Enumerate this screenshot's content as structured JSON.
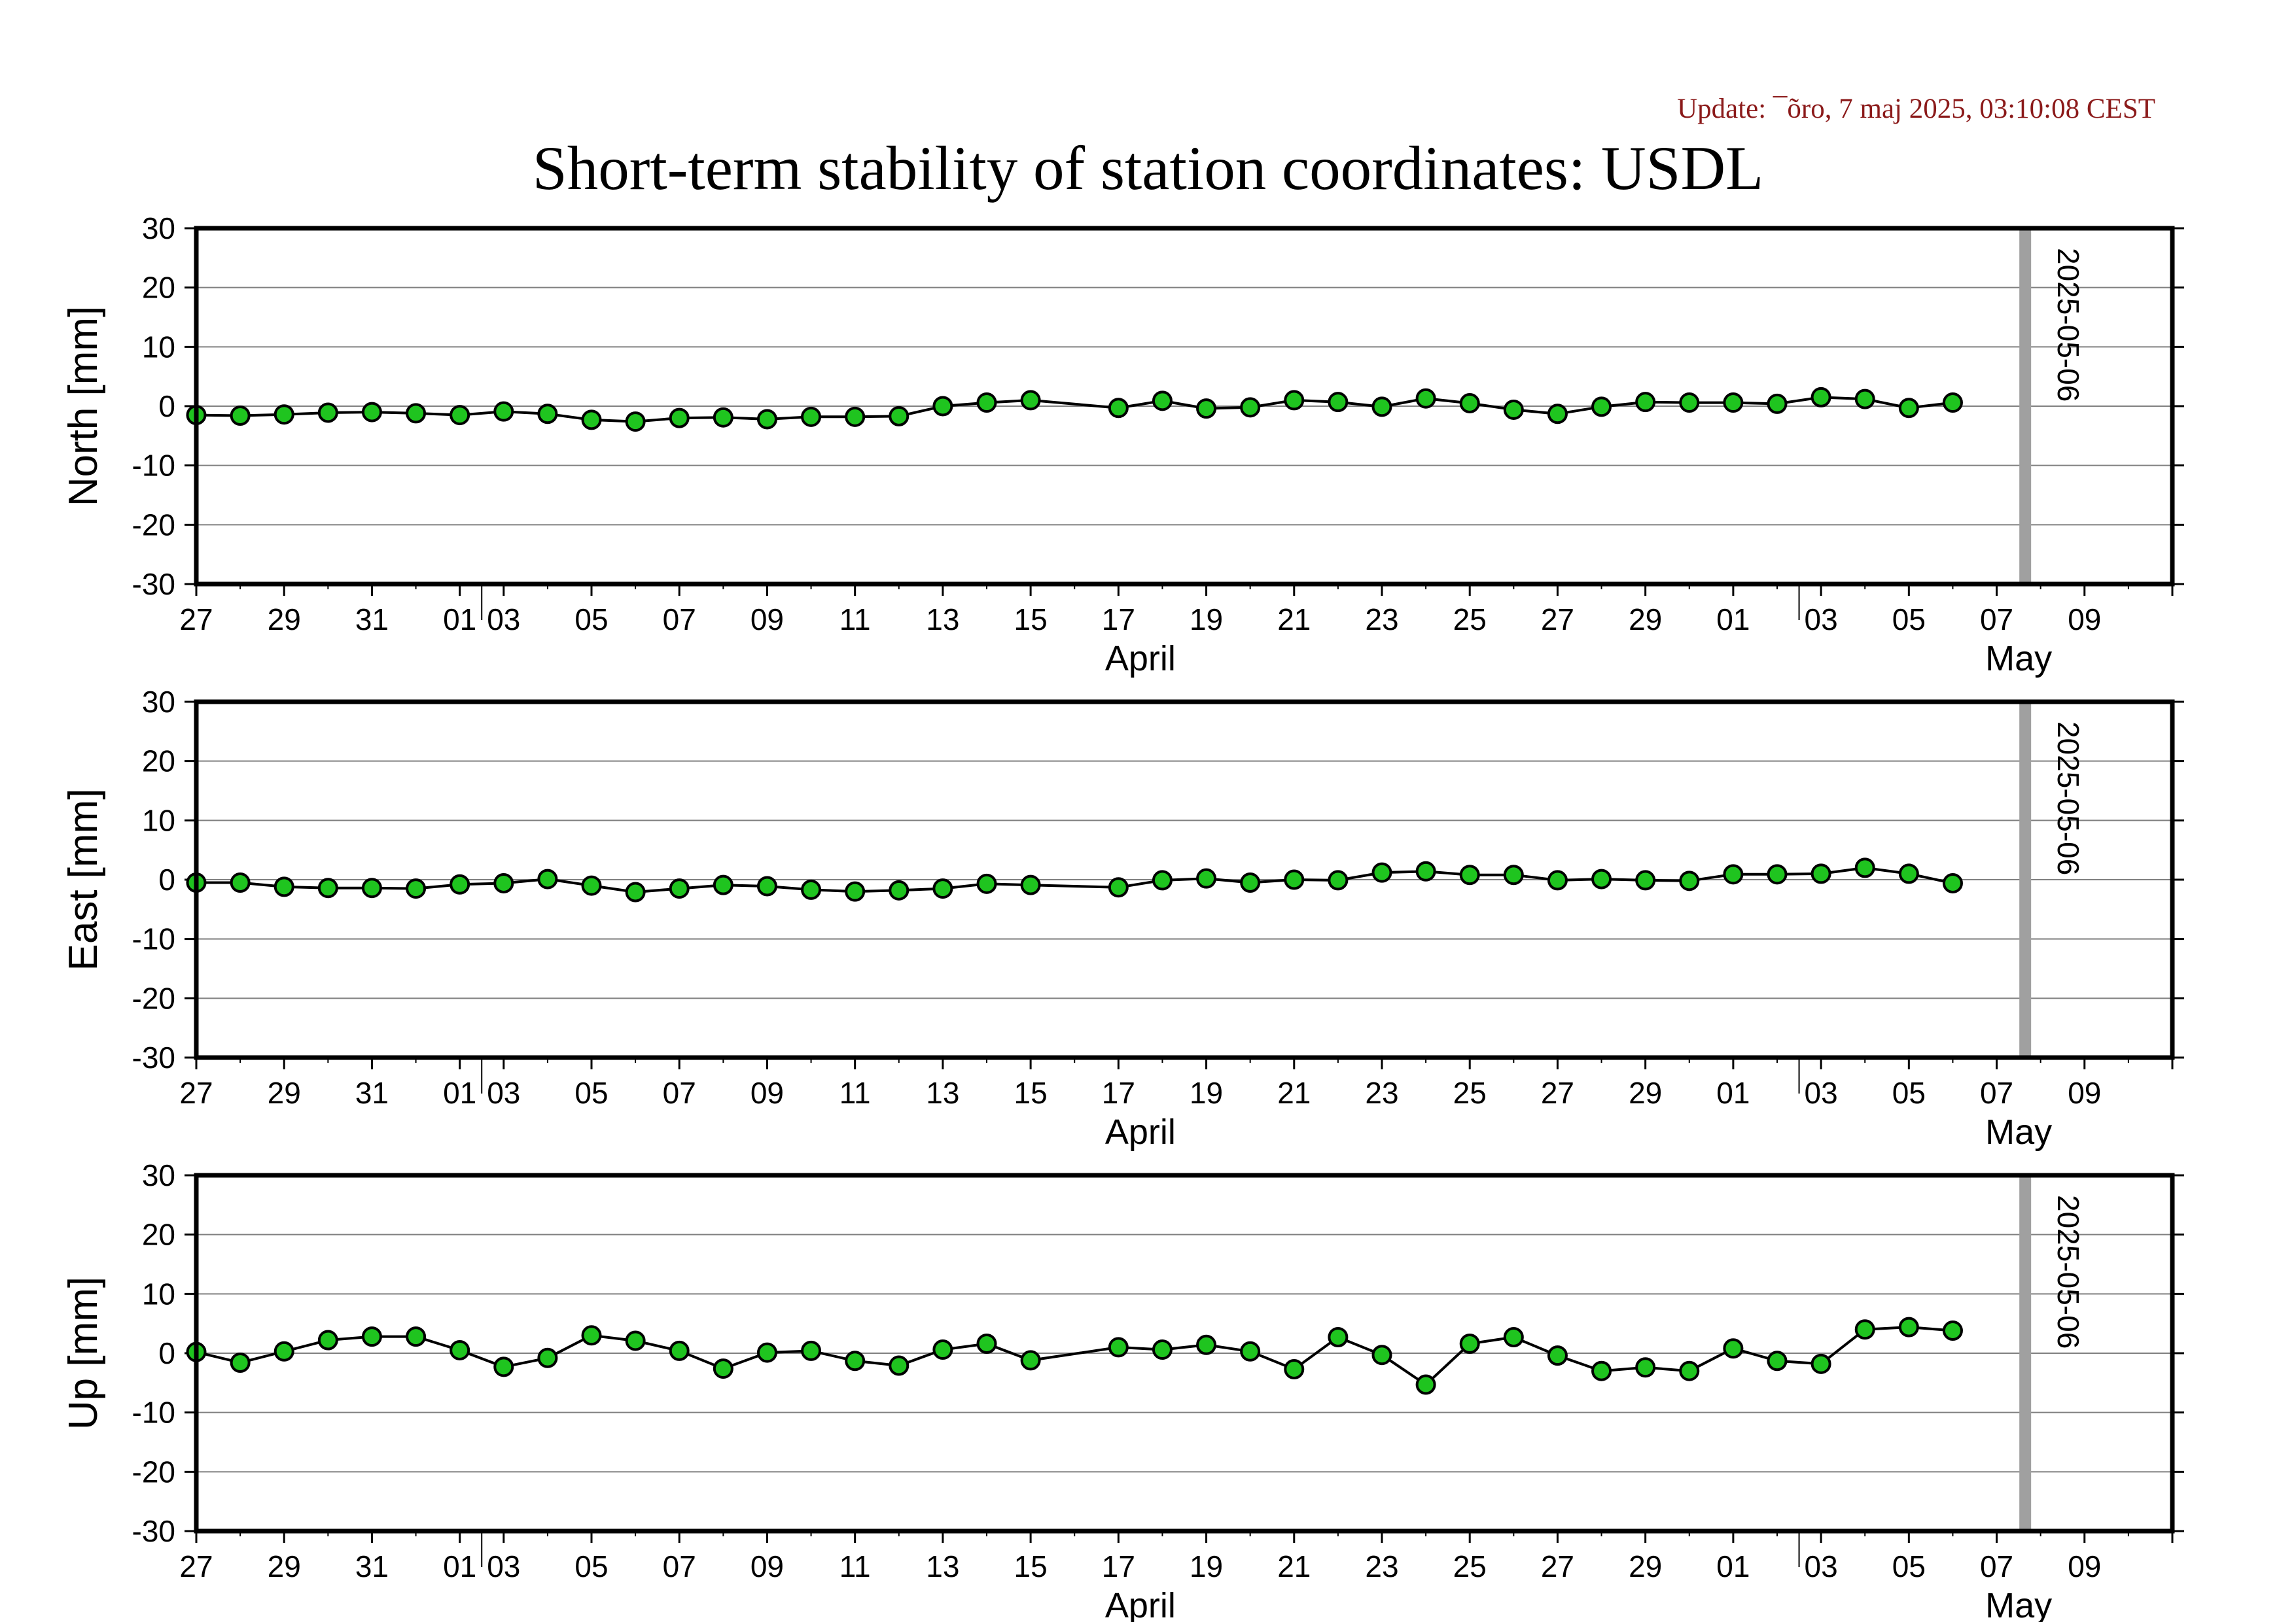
{
  "header": {
    "update_text": "Update: ¯õro, 7 maj 2025, 03:10:08 CEST",
    "title": "Short-term stability of station coordinates: USDL"
  },
  "colors": {
    "marker_fill": "#1fc41f",
    "marker_stroke": "#000000",
    "line": "#000000",
    "grid": "#808080",
    "date_marker": "#a0a0a0",
    "update_text": "#8b1a1a"
  },
  "chart_data": [
    {
      "type": "line",
      "ylabel": "North [mm]",
      "ylim": [
        -30,
        30
      ],
      "yticks": [
        30,
        20,
        10,
        0,
        -10,
        -20,
        -30
      ],
      "xlim": [
        "2025-03-25",
        "2025-05-09"
      ],
      "x_tick_labels": [
        "27",
        "29",
        "31",
        "01",
        "03",
        "05",
        "07",
        "09",
        "11",
        "13",
        "15",
        "17",
        "19",
        "21",
        "23",
        "25",
        "27",
        "29",
        "01",
        "03",
        "05",
        "07",
        "09"
      ],
      "month_labels": [
        "April",
        "May"
      ],
      "vertical_marker": {
        "date": "2025-05-06",
        "label": "2025-05-06"
      },
      "grid": true,
      "x": [
        "2025-03-25",
        "2025-03-26",
        "2025-03-27",
        "2025-03-28",
        "2025-03-29",
        "2025-03-30",
        "2025-03-31",
        "2025-04-01",
        "2025-04-02",
        "2025-04-03",
        "2025-04-04",
        "2025-04-05",
        "2025-04-06",
        "2025-04-07",
        "2025-04-08",
        "2025-04-09",
        "2025-04-10",
        "2025-04-11",
        "2025-04-12",
        "2025-04-13",
        "2025-04-15",
        "2025-04-16",
        "2025-04-17",
        "2025-04-18",
        "2025-04-19",
        "2025-04-20",
        "2025-04-21",
        "2025-04-22",
        "2025-04-23",
        "2025-04-24",
        "2025-04-25",
        "2025-04-26",
        "2025-04-27",
        "2025-04-28",
        "2025-04-29",
        "2025-04-30",
        "2025-05-01",
        "2025-05-02",
        "2025-05-03",
        "2025-05-04"
      ],
      "y": [
        -1.5,
        -1.6,
        -1.4,
        -1.1,
        -1.0,
        -1.2,
        -1.5,
        -0.9,
        -1.3,
        -2.3,
        -2.6,
        -2.0,
        -1.9,
        -2.2,
        -1.8,
        -1.8,
        -1.7,
        0.0,
        0.6,
        1.0,
        -0.3,
        0.9,
        -0.4,
        -0.2,
        1.0,
        0.7,
        -0.1,
        1.3,
        0.5,
        -0.6,
        -1.3,
        -0.1,
        0.7,
        0.6,
        0.6,
        0.4,
        1.5,
        1.2,
        -0.3,
        0.6
      ]
    },
    {
      "type": "line",
      "ylabel": "East [mm]",
      "ylim": [
        -30,
        30
      ],
      "yticks": [
        30,
        20,
        10,
        0,
        -10,
        -20,
        -30
      ],
      "xlim": [
        "2025-03-25",
        "2025-05-09"
      ],
      "x_tick_labels": [
        "27",
        "29",
        "31",
        "01",
        "03",
        "05",
        "07",
        "09",
        "11",
        "13",
        "15",
        "17",
        "19",
        "21",
        "23",
        "25",
        "27",
        "29",
        "01",
        "03",
        "05",
        "07",
        "09"
      ],
      "month_labels": [
        "April",
        "May"
      ],
      "vertical_marker": {
        "date": "2025-05-06",
        "label": "2025-05-06"
      },
      "grid": true,
      "x": [
        "2025-03-25",
        "2025-03-26",
        "2025-03-27",
        "2025-03-28",
        "2025-03-29",
        "2025-03-30",
        "2025-03-31",
        "2025-04-01",
        "2025-04-02",
        "2025-04-03",
        "2025-04-04",
        "2025-04-05",
        "2025-04-06",
        "2025-04-07",
        "2025-04-08",
        "2025-04-09",
        "2025-04-10",
        "2025-04-11",
        "2025-04-12",
        "2025-04-13",
        "2025-04-15",
        "2025-04-16",
        "2025-04-17",
        "2025-04-18",
        "2025-04-19",
        "2025-04-20",
        "2025-04-21",
        "2025-04-22",
        "2025-04-23",
        "2025-04-24",
        "2025-04-25",
        "2025-04-26",
        "2025-04-27",
        "2025-04-28",
        "2025-04-29",
        "2025-04-30",
        "2025-05-01",
        "2025-05-02",
        "2025-05-03",
        "2025-05-04"
      ],
      "y": [
        -0.5,
        -0.5,
        -1.2,
        -1.4,
        -1.4,
        -1.5,
        -0.8,
        -0.6,
        0.1,
        -1.0,
        -2.1,
        -1.5,
        -0.9,
        -1.1,
        -1.7,
        -2.0,
        -1.8,
        -1.5,
        -0.7,
        -0.9,
        -1.3,
        -0.1,
        0.2,
        -0.5,
        0.0,
        -0.1,
        1.2,
        1.4,
        0.8,
        0.8,
        -0.1,
        0.1,
        -0.1,
        -0.2,
        0.9,
        0.9,
        1.0,
        2.0,
        1.0,
        -0.6
      ]
    },
    {
      "type": "line",
      "ylabel": "Up [mm]",
      "ylim": [
        -30,
        30
      ],
      "yticks": [
        30,
        20,
        10,
        0,
        -10,
        -20,
        -30
      ],
      "xlim": [
        "2025-03-25",
        "2025-05-09"
      ],
      "x_tick_labels": [
        "27",
        "29",
        "31",
        "01",
        "03",
        "05",
        "07",
        "09",
        "11",
        "13",
        "15",
        "17",
        "19",
        "21",
        "23",
        "25",
        "27",
        "29",
        "01",
        "03",
        "05",
        "07",
        "09"
      ],
      "month_labels": [
        "April",
        "May"
      ],
      "vertical_marker": {
        "date": "2025-05-06",
        "label": "2025-05-06"
      },
      "grid": true,
      "x": [
        "2025-03-25",
        "2025-03-26",
        "2025-03-27",
        "2025-03-28",
        "2025-03-29",
        "2025-03-30",
        "2025-03-31",
        "2025-04-01",
        "2025-04-02",
        "2025-04-03",
        "2025-04-04",
        "2025-04-05",
        "2025-04-06",
        "2025-04-07",
        "2025-04-08",
        "2025-04-09",
        "2025-04-10",
        "2025-04-11",
        "2025-04-12",
        "2025-04-13",
        "2025-04-15",
        "2025-04-16",
        "2025-04-17",
        "2025-04-18",
        "2025-04-19",
        "2025-04-20",
        "2025-04-21",
        "2025-04-22",
        "2025-04-23",
        "2025-04-24",
        "2025-04-25",
        "2025-04-26",
        "2025-04-27",
        "2025-04-28",
        "2025-04-29",
        "2025-04-30",
        "2025-05-01",
        "2025-05-02",
        "2025-05-03",
        "2025-05-04"
      ],
      "y": [
        0.2,
        -1.6,
        0.3,
        2.2,
        2.8,
        2.8,
        0.5,
        -2.3,
        -0.8,
        3.0,
        2.1,
        0.4,
        -2.6,
        0.1,
        0.4,
        -1.3,
        -2.1,
        0.6,
        1.6,
        -1.2,
        1.0,
        0.6,
        1.4,
        0.3,
        -2.7,
        2.7,
        -0.3,
        -5.3,
        1.6,
        2.7,
        -0.4,
        -3.0,
        -2.4,
        -3.0,
        0.8,
        -1.3,
        -1.8,
        4.0,
        4.4,
        3.8
      ]
    }
  ]
}
